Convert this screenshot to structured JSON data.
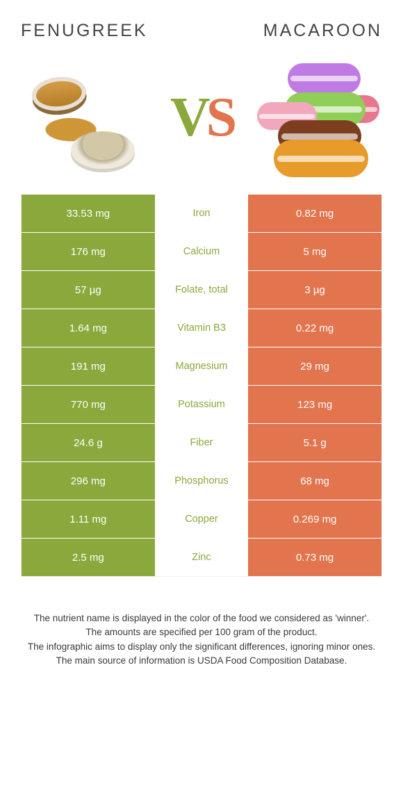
{
  "colors": {
    "left_bg": "#8aa83b",
    "right_bg": "#e2744e",
    "winner_left_text": "#8aa83b",
    "winner_right_text": "#e2744e"
  },
  "header": {
    "left_title": "FENUGREEK",
    "right_title": "MACAROON",
    "vs_v": "V",
    "vs_s": "S"
  },
  "rows": [
    {
      "left": "33.53 mg",
      "label": "Iron",
      "right": "0.82 mg",
      "winner": "left"
    },
    {
      "left": "176 mg",
      "label": "Calcium",
      "right": "5 mg",
      "winner": "left"
    },
    {
      "left": "57 µg",
      "label": "Folate, total",
      "right": "3 µg",
      "winner": "left"
    },
    {
      "left": "1.64 mg",
      "label": "Vitamin B3",
      "right": "0.22 mg",
      "winner": "left"
    },
    {
      "left": "191 mg",
      "label": "Magnesium",
      "right": "29 mg",
      "winner": "left"
    },
    {
      "left": "770 mg",
      "label": "Potassium",
      "right": "123 mg",
      "winner": "left"
    },
    {
      "left": "24.6 g",
      "label": "Fiber",
      "right": "5.1 g",
      "winner": "left"
    },
    {
      "left": "296 mg",
      "label": "Phosphorus",
      "right": "68 mg",
      "winner": "left"
    },
    {
      "left": "1.11 mg",
      "label": "Copper",
      "right": "0.269 mg",
      "winner": "left"
    },
    {
      "left": "2.5 mg",
      "label": "Zinc",
      "right": "0.73 mg",
      "winner": "left"
    }
  ],
  "footer": {
    "l1": "The nutrient name is displayed in the color of the food we considered as 'winner'.",
    "l2": "The amounts are specified per 100 gram of the product.",
    "l3": "The infographic aims to display only the significant differences, ignoring minor ones.",
    "l4": "The main source of information is USDA Food Composition Database."
  }
}
